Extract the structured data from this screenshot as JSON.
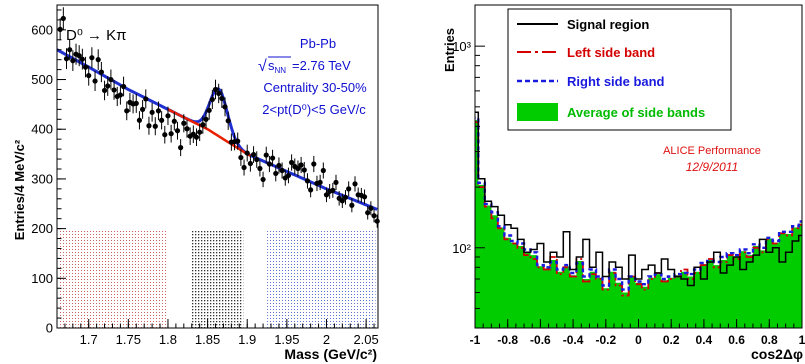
{
  "colors": {
    "signal": "#000000",
    "left": "#d40000",
    "right": "#1a1adf",
    "avg_fill": "#00cc00",
    "fit": "#1f2fd0",
    "bkg": "#e82000",
    "sb_left": "#d06060",
    "sb_sig": "#303030",
    "sb_right": "#6070d0",
    "label_blue": "#1010d0",
    "alice_red": "#dd1111"
  },
  "chart_data": [
    {
      "type": "scatter",
      "ylabel": "Entries/4 MeV/c²",
      "xlabel": "Mass (GeV/c²)",
      "xlim": [
        1.66,
        2.065
      ],
      "ylim": [
        0,
        650
      ],
      "xticks": [
        "1.7",
        "1.75",
        "1.8",
        "1.85",
        "1.9",
        "1.95",
        "2",
        "2.05"
      ],
      "yticks": [
        "0",
        "100",
        "200",
        "300",
        "400",
        "500",
        "600"
      ],
      "process": "D⁰ → Kπ",
      "info_system": "Pb-Pb",
      "info_energy_value": "=2.76 TeV",
      "info_centrality": "Centrality 30-50%",
      "info_pt": "2<pt(D⁰)<5 GeV/c",
      "side_bands": [
        {
          "label": "left",
          "from": 1.662,
          "to": 1.798,
          "height": 197
        },
        {
          "label": "signal",
          "from": 1.83,
          "to": 1.895,
          "height": 197
        },
        {
          "label": "right",
          "from": 1.925,
          "to": 2.062,
          "height": 197
        }
      ],
      "x": [
        1.664,
        1.668,
        1.672,
        1.676,
        1.68,
        1.684,
        1.688,
        1.692,
        1.696,
        1.7,
        1.704,
        1.708,
        1.712,
        1.716,
        1.72,
        1.724,
        1.728,
        1.732,
        1.736,
        1.74,
        1.744,
        1.748,
        1.752,
        1.756,
        1.76,
        1.764,
        1.768,
        1.772,
        1.776,
        1.78,
        1.784,
        1.788,
        1.792,
        1.796,
        1.8,
        1.804,
        1.808,
        1.812,
        1.816,
        1.82,
        1.824,
        1.828,
        1.832,
        1.836,
        1.84,
        1.844,
        1.848,
        1.852,
        1.856,
        1.86,
        1.864,
        1.868,
        1.872,
        1.876,
        1.88,
        1.884,
        1.888,
        1.892,
        1.896,
        1.9,
        1.904,
        1.908,
        1.912,
        1.916,
        1.92,
        1.924,
        1.928,
        1.932,
        1.936,
        1.94,
        1.944,
        1.948,
        1.952,
        1.956,
        1.96,
        1.964,
        1.968,
        1.972,
        1.976,
        1.98,
        1.984,
        1.988,
        1.992,
        1.996,
        2.0,
        2.004,
        2.008,
        2.012,
        2.016,
        2.02,
        2.024,
        2.028,
        2.032,
        2.036,
        2.04,
        2.044,
        2.048,
        2.052,
        2.056,
        2.06,
        2.064
      ],
      "y": [
        601,
        623,
        542,
        560,
        538,
        551,
        548,
        541,
        525,
        508,
        544,
        497,
        540,
        515,
        478,
        487,
        500,
        479,
        466,
        469,
        486,
        437,
        454,
        451,
        452,
        418,
        440,
        461,
        407,
        434,
        406,
        437,
        418,
        389,
        427,
        391,
        416,
        397,
        363,
        412,
        401,
        386,
        390,
        384,
        394,
        409,
        420,
        438,
        460,
        480,
        472,
        462,
        445,
        417,
        374,
        375,
        376,
        343,
        323,
        352,
        331,
        349,
        339,
        321,
        299,
        348,
        330,
        342,
        311,
        327,
        317,
        302,
        307,
        333,
        325,
        321,
        328,
        318,
        296,
        278,
        330,
        291,
        293,
        317,
        268,
        275,
        277,
        293,
        261,
        256,
        263,
        280,
        247,
        290,
        268,
        267,
        264,
        232,
        241,
        226,
        215
      ],
      "fit_note": "exponential background plus gaussian signal",
      "background_fit": {
        "x": [
          1.66,
          1.7,
          1.75,
          1.8,
          1.85,
          1.9,
          1.95,
          2.0,
          2.065
        ],
        "y": [
          560,
          525,
          480,
          440,
          400,
          350,
          315,
          280,
          238
        ]
      },
      "signal_gaussian": {
        "mean": 1.864,
        "sigma": 0.011,
        "amplitude": 95
      }
    },
    {
      "type": "area",
      "ylabel": "Entries",
      "xlabel": "cos2Δφ",
      "xlim": [
        -1,
        1
      ],
      "ylog": true,
      "ylim": [
        40,
        1600
      ],
      "xticks": [
        "-1",
        "-0.8",
        "-0.6",
        "-0.4",
        "-0.2",
        "0",
        "0.2",
        "0.4",
        "0.6",
        "0.8",
        "1"
      ],
      "yticks": [
        "10²",
        "10³"
      ],
      "legend_position": "top-left",
      "legend": [
        {
          "label": "Signal region",
          "style": "signal"
        },
        {
          "label": "Left side band",
          "style": "left"
        },
        {
          "label": "Right side band",
          "style": "right"
        },
        {
          "label": "Average of side bands",
          "style": "avg"
        }
      ],
      "annotation_title": "ALICE Performance",
      "annotation_date": "12/9/2011",
      "bin_width": 0.04,
      "series": [
        {
          "name": "Signal region",
          "values": [
            470,
            220,
            170,
            160,
            145,
            130,
            125,
            110,
            95,
            98,
            105,
            85,
            95,
            90,
            120,
            78,
            90,
            110,
            80,
            95,
            72,
            85,
            80,
            70,
            92,
            70,
            78,
            82,
            75,
            88,
            78,
            72,
            70,
            65,
            80,
            70,
            85,
            95,
            75,
            82,
            90,
            78,
            85,
            92,
            110,
            95,
            100,
            85,
            95,
            108,
            115,
            100,
            120,
            95,
            135,
            125,
            130,
            150,
            185,
            225,
            1020
          ]
        },
        {
          "name": "Left side band",
          "values": [
            420,
            200,
            160,
            140,
            125,
            110,
            105,
            100,
            92,
            88,
            80,
            78,
            90,
            74,
            80,
            72,
            88,
            68,
            74,
            70,
            62,
            75,
            65,
            58,
            72,
            66,
            62,
            70,
            75,
            68,
            70,
            72,
            78,
            70,
            75,
            82,
            88,
            80,
            85,
            92,
            88,
            95,
            90,
            100,
            95,
            110,
            105,
            118,
            115,
            125,
            130,
            140,
            150,
            170,
            195,
            215,
            260,
            320,
            420,
            560,
            880
          ]
        },
        {
          "name": "Right side band",
          "values": [
            440,
            210,
            165,
            150,
            128,
            115,
            108,
            105,
            98,
            95,
            82,
            80,
            85,
            78,
            82,
            75,
            84,
            72,
            78,
            72,
            65,
            78,
            70,
            62,
            72,
            68,
            66,
            72,
            74,
            70,
            72,
            74,
            75,
            74,
            78,
            84,
            86,
            85,
            90,
            94,
            92,
            98,
            94,
            104,
            100,
            112,
            108,
            120,
            120,
            128,
            135,
            145,
            158,
            175,
            200,
            225,
            270,
            330,
            430,
            580,
            900
          ]
        },
        {
          "name": "Average of side bands",
          "values": [
            430,
            205,
            162,
            145,
            126,
            112,
            106,
            102,
            95,
            92,
            81,
            79,
            87,
            76,
            81,
            73,
            86,
            70,
            76,
            71,
            63,
            76,
            67,
            60,
            72,
            67,
            64,
            71,
            74,
            69,
            71,
            73,
            76,
            72,
            76,
            83,
            87,
            82,
            87,
            93,
            90,
            96,
            92,
            102,
            97,
            111,
            106,
            119,
            117,
            126,
            132,
            142,
            154,
            172,
            197,
            220,
            265,
            325,
            425,
            570,
            890
          ]
        }
      ]
    }
  ]
}
